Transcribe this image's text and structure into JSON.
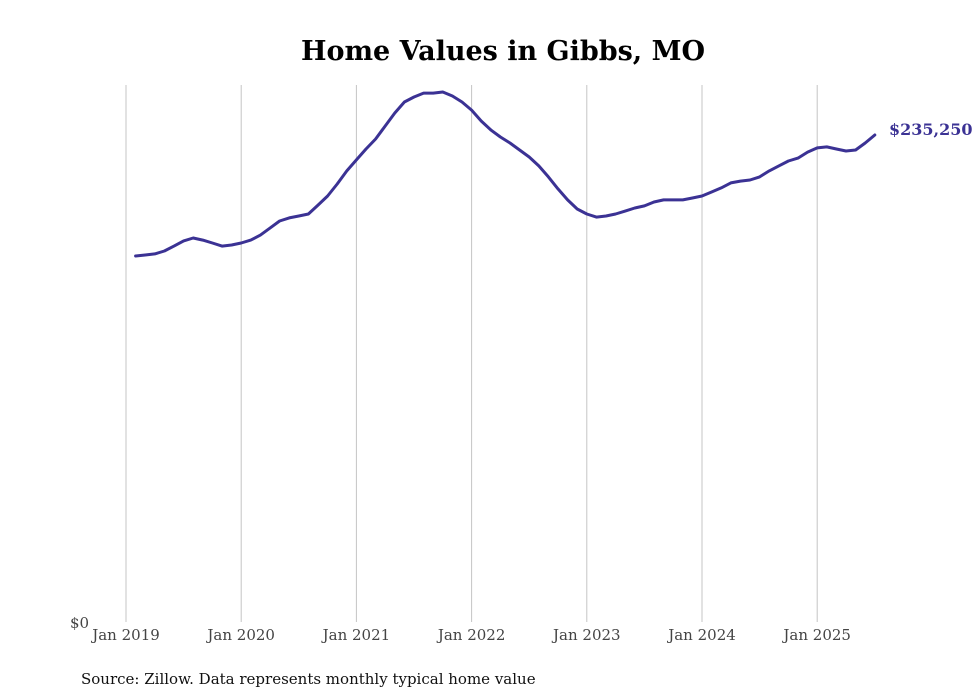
{
  "chart_data": {
    "type": "line",
    "title": "Home Values in Gibbs, MO",
    "source": "Source: Zillow. Data represents monthly typical home value",
    "xlabel": "",
    "ylabel": "",
    "y_tick_label": "$0",
    "ylim": [
      0,
      260000
    ],
    "grid": "vertical",
    "x_tick_labels": [
      "Jan 2019",
      "Jan 2020",
      "Jan 2021",
      "Jan 2022",
      "Jan 2023",
      "Jan 2024",
      "Jan 2025"
    ],
    "start_month": "Feb 2019",
    "end_month": "Jul 2025",
    "end_label": "$235,250",
    "line_color": "#3b3294",
    "series": [
      {
        "name": "Typical home value",
        "values": [
          176800,
          177300,
          177800,
          179200,
          181600,
          184100,
          185500,
          184500,
          183100,
          181600,
          182100,
          183100,
          184500,
          186900,
          190300,
          193700,
          195200,
          196100,
          197100,
          201400,
          205800,
          211600,
          217900,
          223200,
          228500,
          233300,
          239600,
          245900,
          251200,
          253600,
          255500,
          255500,
          256000,
          254100,
          251200,
          247300,
          242000,
          237700,
          234300,
          231400,
          228000,
          224600,
          220300,
          215000,
          209200,
          203900,
          199500,
          197100,
          195600,
          196100,
          197100,
          198500,
          200000,
          201000,
          202900,
          203900,
          203900,
          203900,
          204800,
          205800,
          207700,
          209700,
          212100,
          213000,
          213500,
          215000,
          217900,
          220300,
          222700,
          224100,
          227000,
          229000,
          229500,
          228500,
          227500,
          228000,
          231400,
          235250
        ]
      }
    ]
  }
}
